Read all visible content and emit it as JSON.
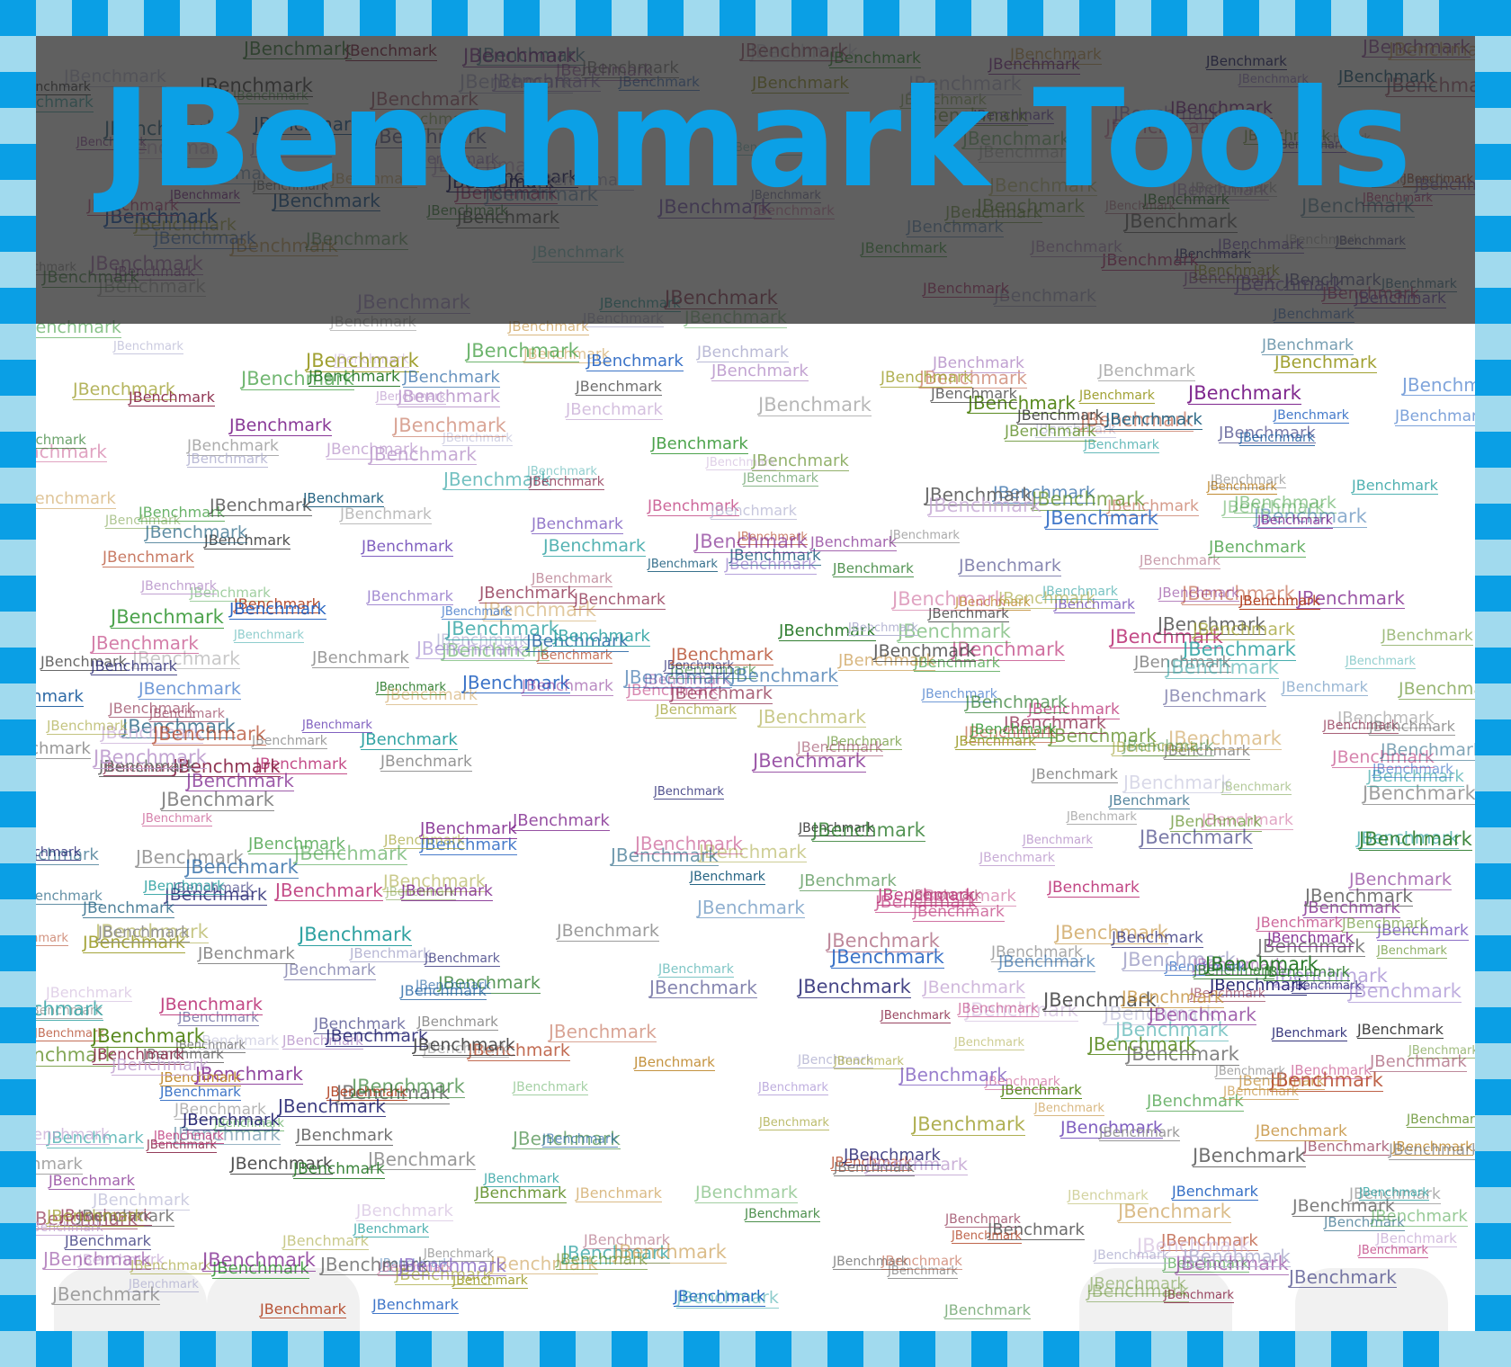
{
  "title": "JBenchmark Tools",
  "word": "JBenchmark",
  "colors": {
    "accent": "#0ba0e6",
    "border_dark": "#0a9fe5",
    "border_light": "#a1daee",
    "header_overlay": "#3a3a3a"
  },
  "palette": [
    "#1b1b6b",
    "#2a7a2a",
    "#7a1f8a",
    "#b04020",
    "#1e5fa0",
    "#6a6a6a",
    "#c08a30",
    "#2aa0a0",
    "#8a2a4a",
    "#3a9a3a",
    "#8060c0",
    "#a0a030",
    "#206080",
    "#c04080",
    "#404040",
    "#5a8a20",
    "#b0b0d0",
    "#c0a0d0",
    "#909090",
    "#2060c0"
  ]
}
